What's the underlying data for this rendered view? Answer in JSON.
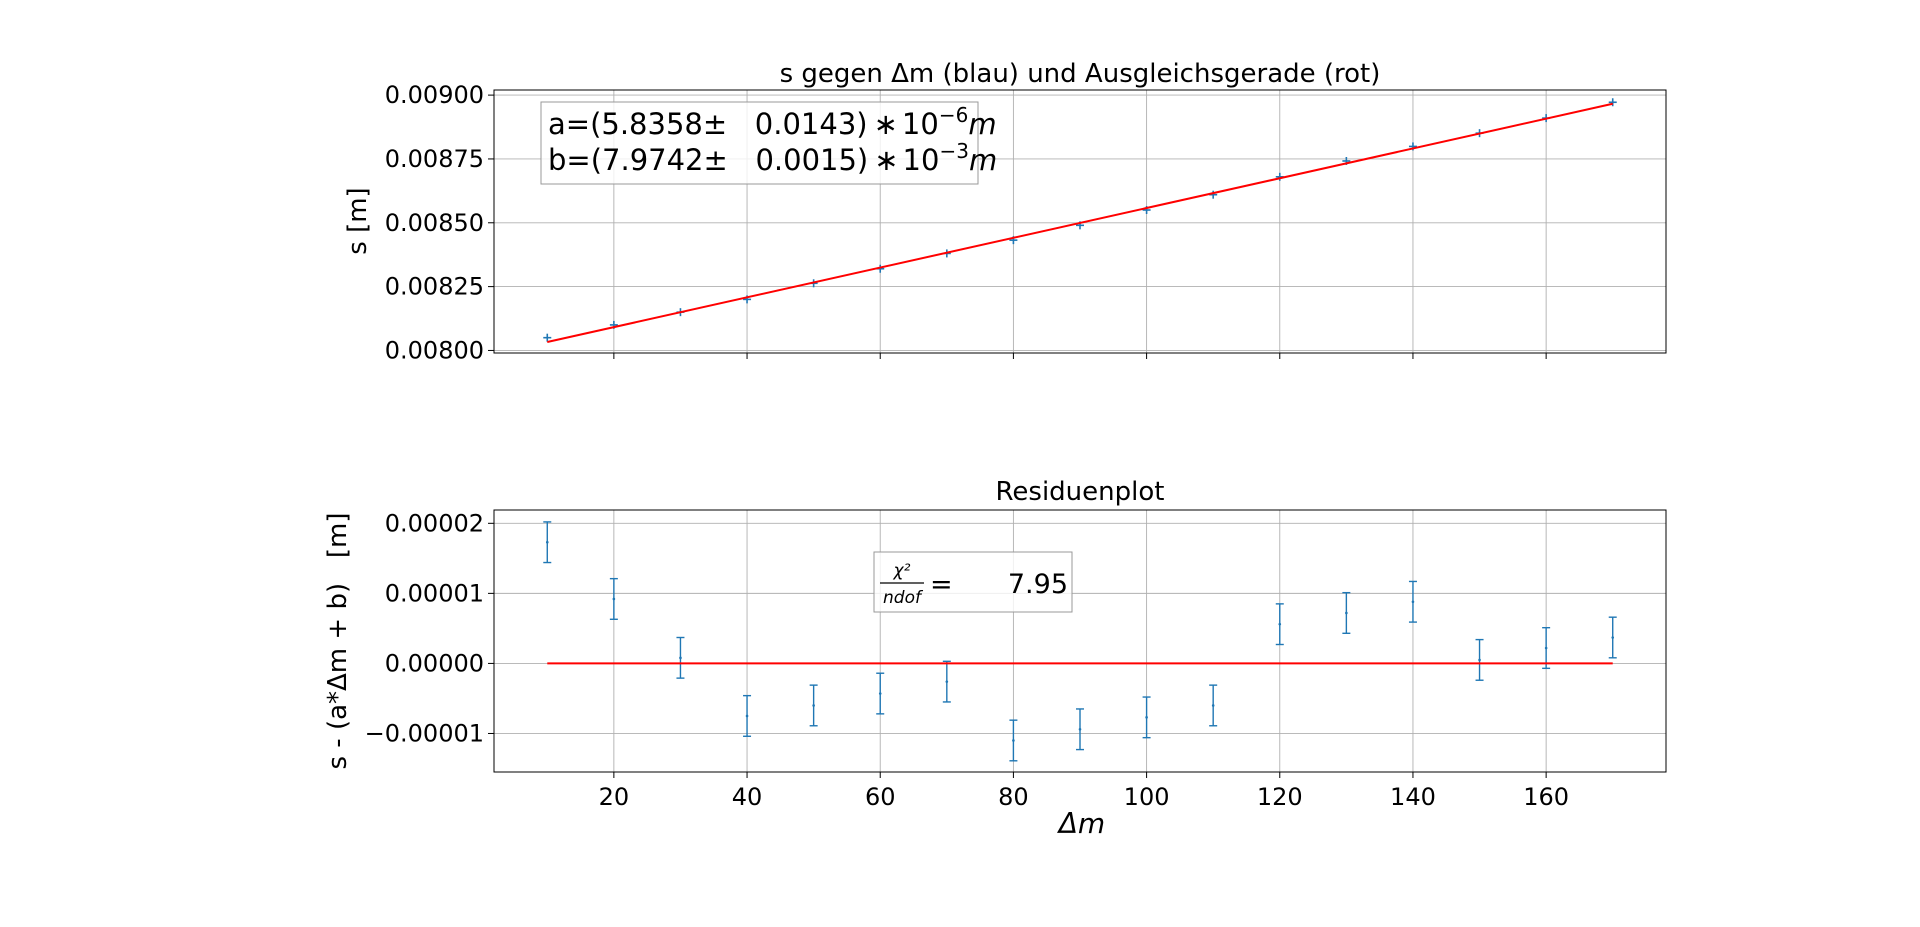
{
  "chart_data": [
    {
      "type": "scatter",
      "title": "s gegen Δm (blau) und Ausgleichsgerade (rot)",
      "xlabel": "",
      "ylabel": "s [m]",
      "xlim": [
        2,
        178
      ],
      "ylim": [
        0.00799,
        0.00902
      ],
      "grid": true,
      "xticks": [
        20,
        40,
        60,
        80,
        100,
        120,
        140,
        160
      ],
      "yticks": [
        0.008,
        0.00825,
        0.0085,
        0.00875,
        0.009
      ],
      "ytick_labels": [
        "0.00800",
        "0.00825",
        "0.00850",
        "0.00875",
        "0.00900"
      ],
      "series": [
        {
          "kind": "points",
          "color": "#1f77b4",
          "x": [
            10,
            20,
            30,
            40,
            50,
            60,
            70,
            80,
            90,
            100,
            110,
            120,
            130,
            140,
            150,
            160,
            170
          ],
          "y": [
            0.00805,
            0.0081,
            0.00815,
            0.0082,
            0.008263,
            0.00832,
            0.00838,
            0.008432,
            0.00849,
            0.00855,
            0.00861,
            0.00868,
            0.008742,
            0.008799,
            0.008851,
            0.00891,
            0.008972
          ]
        },
        {
          "kind": "line",
          "color": "#ff0000",
          "x": [
            10,
            170
          ],
          "y": [
            0.008033,
            0.008966
          ]
        }
      ],
      "annotation": {
        "line1": "a=(5.8358±   0.0143)",
        "line1_mult": "∗",
        "line1_base": "10",
        "line1_exp": "−6",
        "line1_unit": "m",
        "line2": "b=(7.9742±   0.0015)",
        "line2_mult": "∗",
        "line2_base": "10",
        "line2_exp": "−3",
        "line2_unit": "m"
      }
    },
    {
      "type": "scatter",
      "title": "Residuenplot",
      "xlabel": "Δm",
      "ylabel": "s - (a*Δm + b)   [m]",
      "xlim": [
        2,
        178
      ],
      "ylim": [
        -1.55e-05,
        2.19e-05
      ],
      "grid": true,
      "xticks": [
        20,
        40,
        60,
        80,
        100,
        120,
        140,
        160
      ],
      "yticks": [
        -1e-05,
        0,
        1e-05,
        2e-05
      ],
      "ytick_labels": [
        "−0.00001",
        "0.00000",
        "0.00001",
        "0.00002"
      ],
      "series": [
        {
          "kind": "errorbar",
          "color": "#1f77b4",
          "x": [
            10,
            20,
            30,
            40,
            50,
            60,
            70,
            80,
            90,
            100,
            110,
            120,
            130,
            140,
            150,
            160,
            170
          ],
          "y": [
            1.73e-05,
            9.2e-06,
            8e-07,
            -7.5e-06,
            -6e-06,
            -4.3e-06,
            -2.6e-06,
            -1.1e-05,
            -9.4e-06,
            -7.7e-06,
            -6e-06,
            5.6e-06,
            7.2e-06,
            8.8e-06,
            5e-07,
            2.2e-06,
            3.7e-06
          ],
          "yerr": 2.9e-06
        },
        {
          "kind": "line",
          "color": "#ff0000",
          "x": [
            10,
            170
          ],
          "y": [
            0,
            0
          ]
        }
      ],
      "annotation": {
        "chi_num": "χ²",
        "chi_den": "ndof",
        "equals": "=",
        "value": "7.95"
      }
    }
  ]
}
